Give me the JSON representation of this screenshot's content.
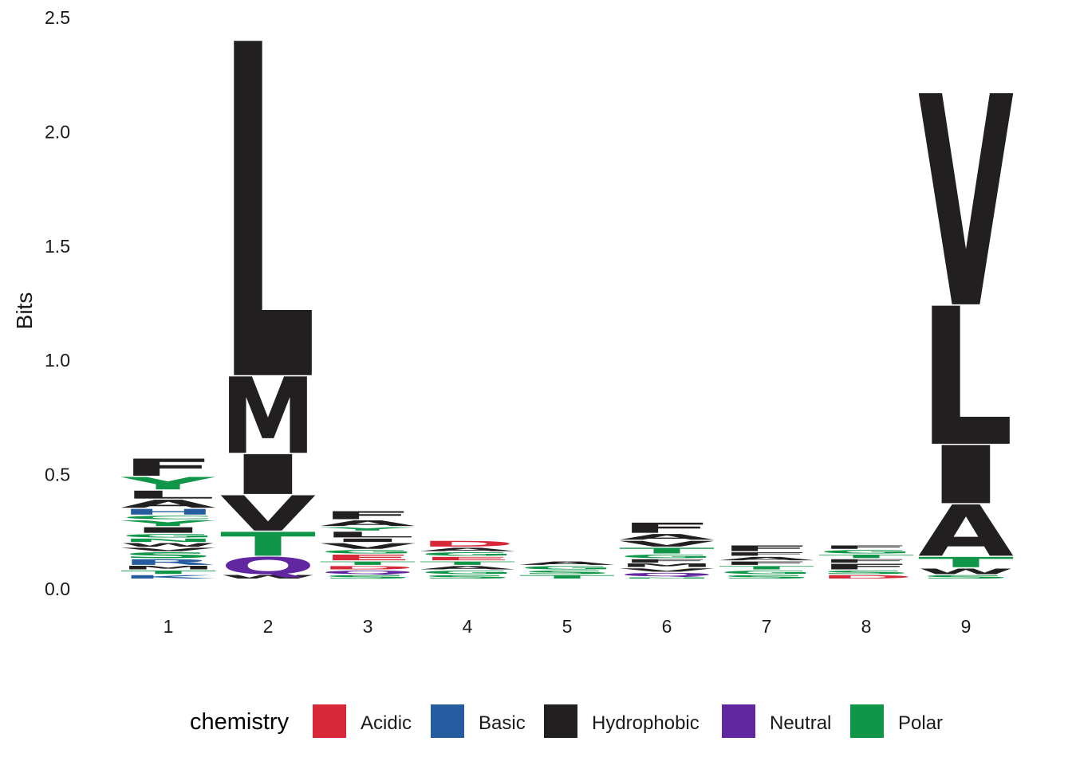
{
  "chart_data": {
    "type": "sequence-logo",
    "ylabel": "Bits",
    "ylim": [
      0,
      2.5
    ],
    "yticks": [
      "0.0",
      "0.5",
      "1.0",
      "1.5",
      "2.0",
      "2.5"
    ],
    "positions": [
      "1",
      "2",
      "3",
      "4",
      "5",
      "6",
      "7",
      "8",
      "9"
    ],
    "colors": {
      "Acidic": "#d62839",
      "Basic": "#265da0",
      "Hydrophobic": "#221f20",
      "Neutral": "#6027a0",
      "Polar": "#109648"
    },
    "stacks": [
      [
        {
          "letter": "K",
          "group": "Basic",
          "bits": 0.02
        },
        {
          "letter": "T",
          "group": "Polar",
          "bits": 0.02
        },
        {
          "letter": "M",
          "group": "Hydrophobic",
          "bits": 0.02
        },
        {
          "letter": "R",
          "group": "Basic",
          "bits": 0.03
        },
        {
          "letter": "S",
          "group": "Polar",
          "bits": 0.03
        },
        {
          "letter": "V",
          "group": "Hydrophobic",
          "bits": 0.02
        },
        {
          "letter": "W",
          "group": "Hydrophobic",
          "bits": 0.02
        },
        {
          "letter": "N",
          "group": "Polar",
          "bits": 0.02
        },
        {
          "letter": "G",
          "group": "Polar",
          "bits": 0.02
        },
        {
          "letter": "I",
          "group": "Hydrophobic",
          "bits": 0.03
        },
        {
          "letter": "Y",
          "group": "Polar",
          "bits": 0.03
        },
        {
          "letter": "C",
          "group": "Polar",
          "bits": 0.02
        },
        {
          "letter": "H",
          "group": "Basic",
          "bits": 0.03
        },
        {
          "letter": "A",
          "group": "Hydrophobic",
          "bits": 0.04
        },
        {
          "letter": "L",
          "group": "Hydrophobic",
          "bits": 0.04
        },
        {
          "letter": "Y",
          "group": "Polar",
          "bits": 0.06
        },
        {
          "letter": "F",
          "group": "Hydrophobic",
          "bits": 0.08
        }
      ],
      [
        {
          "letter": "W",
          "group": "Hydrophobic",
          "bits": 0.02
        },
        {
          "letter": "Q",
          "group": "Neutral",
          "bits": 0.08
        },
        {
          "letter": "T",
          "group": "Polar",
          "bits": 0.11
        },
        {
          "letter": "V",
          "group": "Hydrophobic",
          "bits": 0.16
        },
        {
          "letter": "I",
          "group": "Hydrophobic",
          "bits": 0.18
        },
        {
          "letter": "M",
          "group": "Hydrophobic",
          "bits": 0.34
        },
        {
          "letter": "L",
          "group": "Hydrophobic",
          "bits": 1.47
        }
      ],
      [
        {
          "letter": "S",
          "group": "Polar",
          "bits": 0.02
        },
        {
          "letter": "Q",
          "group": "Neutral",
          "bits": 0.02
        },
        {
          "letter": "D",
          "group": "Acidic",
          "bits": 0.02
        },
        {
          "letter": "T",
          "group": "Polar",
          "bits": 0.02
        },
        {
          "letter": "E",
          "group": "Acidic",
          "bits": 0.03
        },
        {
          "letter": "G",
          "group": "Polar",
          "bits": 0.02
        },
        {
          "letter": "V",
          "group": "Hydrophobic",
          "bits": 0.03
        },
        {
          "letter": "I",
          "group": "Hydrophobic",
          "bits": 0.02
        },
        {
          "letter": "L",
          "group": "Hydrophobic",
          "bits": 0.03
        },
        {
          "letter": "Y",
          "group": "Polar",
          "bits": 0.02
        },
        {
          "letter": "A",
          "group": "Hydrophobic",
          "bits": 0.03
        },
        {
          "letter": "F",
          "group": "Hydrophobic",
          "bits": 0.04
        }
      ],
      [
        {
          "letter": "S",
          "group": "Polar",
          "bits": 0.02
        },
        {
          "letter": "G",
          "group": "Polar",
          "bits": 0.02
        },
        {
          "letter": "A",
          "group": "Hydrophobic",
          "bits": 0.02
        },
        {
          "letter": "T",
          "group": "Polar",
          "bits": 0.02
        },
        {
          "letter": "E",
          "group": "Acidic",
          "bits": 0.02
        },
        {
          "letter": "G",
          "group": "Polar",
          "bits": 0.02
        },
        {
          "letter": "A",
          "group": "Hydrophobic",
          "bits": 0.02
        },
        {
          "letter": "D",
          "group": "Acidic",
          "bits": 0.03
        }
      ],
      [
        {
          "letter": "T",
          "group": "Polar",
          "bits": 0.02
        },
        {
          "letter": "S",
          "group": "Polar",
          "bits": 0.02
        },
        {
          "letter": "G",
          "group": "Polar",
          "bits": 0.02
        },
        {
          "letter": "A",
          "group": "Hydrophobic",
          "bits": 0.02
        }
      ],
      [
        {
          "letter": "N",
          "group": "Polar",
          "bits": 0.01
        },
        {
          "letter": "Q",
          "group": "Neutral",
          "bits": 0.02
        },
        {
          "letter": "V",
          "group": "Hydrophobic",
          "bits": 0.02
        },
        {
          "letter": "M",
          "group": "Hydrophobic",
          "bits": 0.02
        },
        {
          "letter": "F",
          "group": "Hydrophobic",
          "bits": 0.02
        },
        {
          "letter": "G",
          "group": "Polar",
          "bits": 0.02
        },
        {
          "letter": "T",
          "group": "Polar",
          "bits": 0.03
        },
        {
          "letter": "V",
          "group": "Hydrophobic",
          "bits": 0.03
        },
        {
          "letter": "A",
          "group": "Hydrophobic",
          "bits": 0.03
        },
        {
          "letter": "F",
          "group": "Hydrophobic",
          "bits": 0.05
        }
      ],
      [
        {
          "letter": "S",
          "group": "Polar",
          "bits": 0.02
        },
        {
          "letter": "G",
          "group": "Polar",
          "bits": 0.02
        },
        {
          "letter": "T",
          "group": "Polar",
          "bits": 0.02
        },
        {
          "letter": "F",
          "group": "Hydrophobic",
          "bits": 0.02
        },
        {
          "letter": "A",
          "group": "Hydrophobic",
          "bits": 0.02
        },
        {
          "letter": "F",
          "group": "Hydrophobic",
          "bits": 0.02
        },
        {
          "letter": "F",
          "group": "Hydrophobic",
          "bits": 0.03
        }
      ],
      [
        {
          "letter": "D",
          "group": "Acidic",
          "bits": 0.02
        },
        {
          "letter": "S",
          "group": "Polar",
          "bits": 0.02
        },
        {
          "letter": "F",
          "group": "Hydrophobic",
          "bits": 0.03
        },
        {
          "letter": "F",
          "group": "Hydrophobic",
          "bits": 0.02
        },
        {
          "letter": "T",
          "group": "Polar",
          "bits": 0.02
        },
        {
          "letter": "G",
          "group": "Polar",
          "bits": 0.02
        },
        {
          "letter": "F",
          "group": "Hydrophobic",
          "bits": 0.02
        }
      ],
      [
        {
          "letter": "S",
          "group": "Polar",
          "bits": 0.02
        },
        {
          "letter": "W",
          "group": "Hydrophobic",
          "bits": 0.03
        },
        {
          "letter": "T",
          "group": "Polar",
          "bits": 0.05
        },
        {
          "letter": "A",
          "group": "Hydrophobic",
          "bits": 0.23
        },
        {
          "letter": "I",
          "group": "Hydrophobic",
          "bits": 0.26
        },
        {
          "letter": "L",
          "group": "Hydrophobic",
          "bits": 0.61
        },
        {
          "letter": "V",
          "group": "Hydrophobic",
          "bits": 0.93
        }
      ]
    ],
    "legend": {
      "title": "chemistry",
      "position": "bottom",
      "entries": [
        "Acidic",
        "Basic",
        "Hydrophobic",
        "Neutral",
        "Polar"
      ]
    }
  }
}
